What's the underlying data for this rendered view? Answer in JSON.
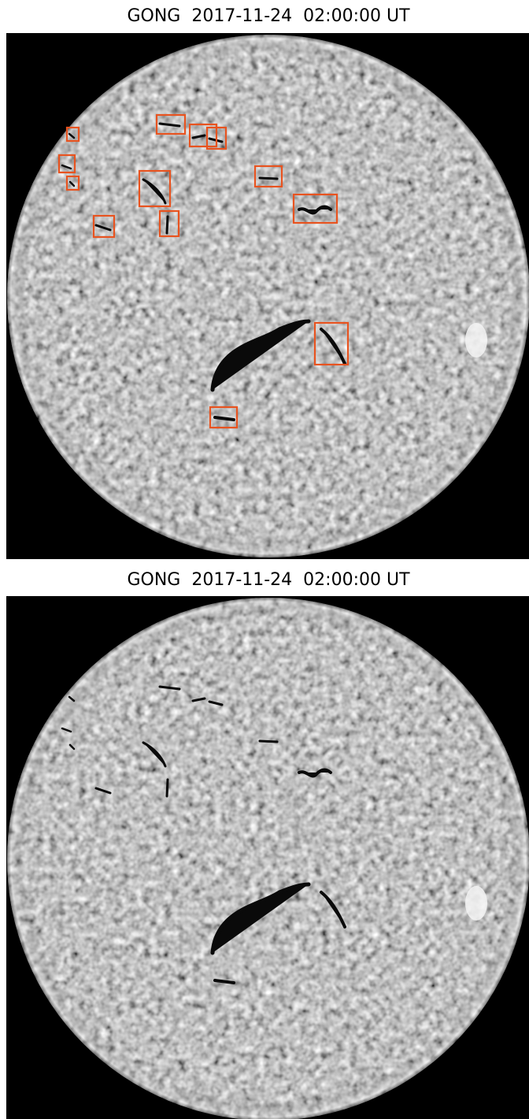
{
  "panels": [
    {
      "title": "GONG  2017-11-24  02:00:00 UT"
    },
    {
      "title": "GONG  2017-11-24  02:00:00 UT"
    }
  ]
}
